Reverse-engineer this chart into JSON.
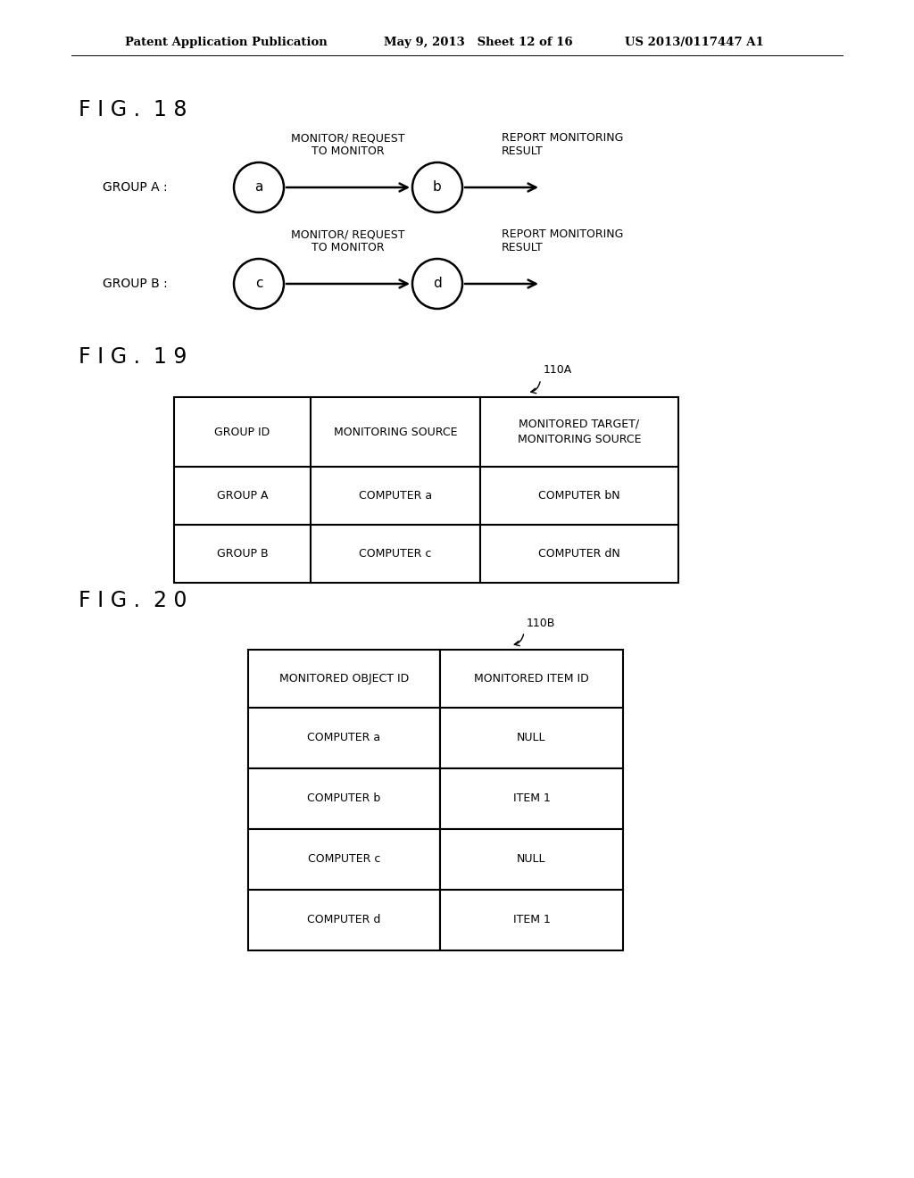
{
  "bg_color": "#ffffff",
  "header_text_left": "Patent Application Publication",
  "header_text_mid": "May 9, 2013   Sheet 12 of 16",
  "header_text_right": "US 2013/0117447 A1",
  "fig18_label": "F I G .  1 8",
  "fig19_label": "F I G .  1 9",
  "fig20_label": "F I G .  2 0",
  "group_a_label": "GROUP A :",
  "group_b_label": "GROUP B :",
  "node_a": "a",
  "node_b": "b",
  "node_c": "c",
  "node_d": "d",
  "arrow_label_top": "MONITOR/ REQUEST\nTO MONITOR",
  "arrow_label_right": "REPORT MONITORING\nRESULT",
  "table19_label": "110A",
  "table19_headers": [
    "GROUP ID",
    "MONITORING SOURCE",
    "MONITORED TARGET/\nMONITORING SOURCE"
  ],
  "table19_rows": [
    [
      "GROUP A",
      "COMPUTER a",
      "COMPUTER bN"
    ],
    [
      "GROUP B",
      "COMPUTER c",
      "COMPUTER dN"
    ]
  ],
  "table20_label": "110B",
  "table20_headers": [
    "MONITORED OBJECT ID",
    "MONITORED ITEM ID"
  ],
  "table20_rows": [
    [
      "COMPUTER a",
      "NULL"
    ],
    [
      "COMPUTER b",
      "ITEM 1"
    ],
    [
      "COMPUTER c",
      "NULL"
    ],
    [
      "COMPUTER d",
      "ITEM 1"
    ]
  ]
}
